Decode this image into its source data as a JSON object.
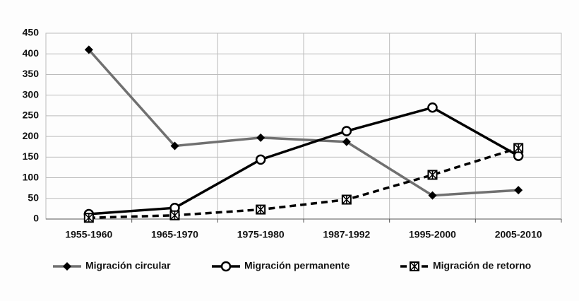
{
  "chart_data": {
    "type": "line",
    "categories": [
      "1955-1960",
      "1965-1970",
      "1975-1980",
      "1987-1992",
      "1995-2000",
      "2005-2010"
    ],
    "series": [
      {
        "name": "Migración circular",
        "color": "#707070",
        "marker": "diamond",
        "dash": false,
        "values": [
          410,
          177,
          197,
          187,
          57,
          70
        ]
      },
      {
        "name": "Migración permanente",
        "color": "#000000",
        "marker": "circle",
        "dash": false,
        "values": [
          12,
          27,
          144,
          213,
          270,
          153
        ]
      },
      {
        "name": "Migración de retorno",
        "color": "#000000",
        "marker": "x-square",
        "dash": true,
        "values": [
          3,
          9,
          23,
          47,
          107,
          172
        ]
      }
    ],
    "ylim": [
      0,
      450
    ],
    "yticks": [
      0,
      50,
      100,
      150,
      200,
      250,
      300,
      350,
      400,
      450
    ],
    "grid": true,
    "legend": "bottom"
  }
}
